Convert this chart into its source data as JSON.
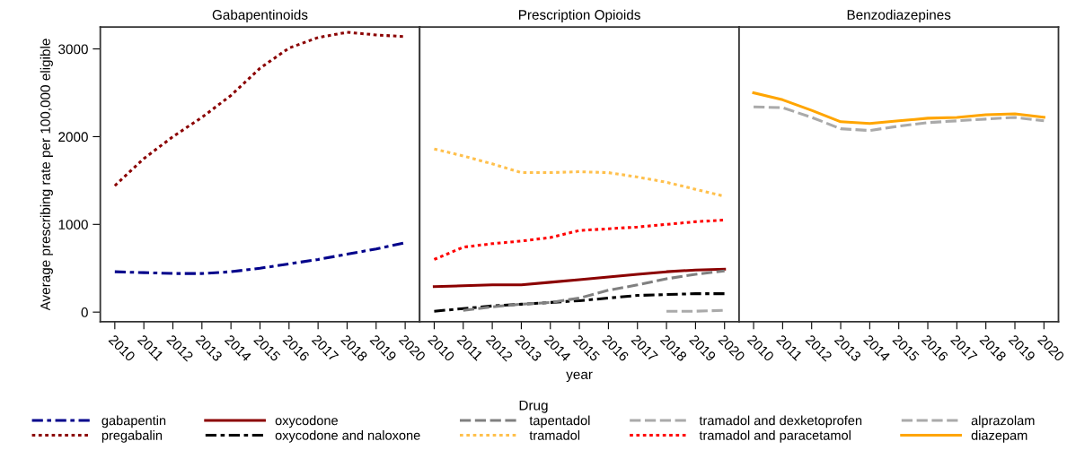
{
  "chart_data": [
    {
      "type": "line",
      "title": "Gabapentinoids",
      "ylabel": "Average prescribing rate per 100,000 eligible",
      "legend_title": "Drug",
      "legend": "bottom",
      "marker": "none",
      "grid": false,
      "x": [
        2010,
        2011,
        2012,
        2013,
        2014,
        2015,
        2016,
        2017,
        2018,
        2019,
        2020
      ],
      "xlim": [
        2009.5,
        2020.5
      ],
      "xticks": [
        2010,
        2011,
        2012,
        2013,
        2014,
        2015,
        2016,
        2017,
        2018,
        2019,
        2020
      ],
      "ylim": [
        -110,
        3250
      ],
      "yticks": [
        0,
        1000,
        2000,
        3000
      ],
      "series": [
        {
          "name": "gabapentin",
          "color": "#00008b",
          "line_style": "dashdot",
          "values": [
            460,
            450,
            440,
            440,
            460,
            500,
            550,
            600,
            660,
            720,
            790
          ]
        },
        {
          "name": "pregabalin",
          "color": "#8b0000",
          "line_style": "dotted",
          "values": [
            1440,
            1750,
            2000,
            2220,
            2470,
            2780,
            3010,
            3130,
            3190,
            3160,
            3140
          ]
        }
      ]
    },
    {
      "type": "line",
      "title": "Prescription Opioids",
      "xlabel": "year",
      "legend": "bottom",
      "marker": "none",
      "grid": false,
      "tick_labels": "x",
      "x": [
        2010,
        2011,
        2012,
        2013,
        2014,
        2015,
        2016,
        2017,
        2018,
        2019,
        2020
      ],
      "xlim": [
        2009.5,
        2020.5
      ],
      "xticks": [
        2010,
        2011,
        2012,
        2013,
        2014,
        2015,
        2016,
        2017,
        2018,
        2019,
        2020
      ],
      "ylim": [
        -110,
        3250
      ],
      "series": [
        {
          "name": "oxycodone",
          "color": "#8b0000",
          "line_style": "solid",
          "values": [
            290,
            300,
            310,
            310,
            340,
            370,
            400,
            430,
            460,
            480,
            490
          ]
        },
        {
          "name": "oxycodone and naloxone",
          "color": "#000000",
          "line_style": "dashdot",
          "values": [
            10,
            40,
            70,
            90,
            110,
            130,
            160,
            190,
            200,
            210,
            210
          ]
        },
        {
          "name": "tapentadol",
          "color": "#808080",
          "line_style": "dashed",
          "values": [
            null,
            20,
            60,
            90,
            110,
            160,
            250,
            310,
            380,
            430,
            470
          ]
        },
        {
          "name": "tramadol",
          "color": "#ffc04c",
          "line_style": "dotted",
          "values": [
            1860,
            1780,
            1690,
            1590,
            1590,
            1600,
            1590,
            1540,
            1480,
            1400,
            1320
          ]
        },
        {
          "name": "tramadol and dexketoprofen",
          "color": "#aaaaaa",
          "line_style": "dashed",
          "values": [
            null,
            null,
            null,
            null,
            null,
            null,
            null,
            null,
            10,
            10,
            20
          ]
        },
        {
          "name": "tramadol and paracetamol",
          "color": "#ff0000",
          "line_style": "dotted",
          "values": [
            600,
            740,
            780,
            810,
            850,
            930,
            950,
            970,
            1000,
            1030,
            1050
          ]
        }
      ]
    },
    {
      "type": "line",
      "title": "Benzodiazepines",
      "legend": "bottom",
      "marker": "none",
      "grid": false,
      "tick_labels": "x",
      "x": [
        2010,
        2011,
        2012,
        2013,
        2014,
        2015,
        2016,
        2017,
        2018,
        2019,
        2020
      ],
      "xlim": [
        2009.5,
        2020.5
      ],
      "xticks": [
        2010,
        2011,
        2012,
        2013,
        2014,
        2015,
        2016,
        2017,
        2018,
        2019,
        2020
      ],
      "ylim": [
        -110,
        3250
      ],
      "series": [
        {
          "name": "alprazolam",
          "color": "#aaaaaa",
          "line_style": "dashed",
          "values": [
            2340,
            2330,
            2220,
            2090,
            2070,
            2120,
            2160,
            2180,
            2200,
            2220,
            2180
          ]
        },
        {
          "name": "diazepam",
          "color": "#ffa500",
          "line_style": "solid",
          "values": [
            2500,
            2420,
            2300,
            2170,
            2150,
            2180,
            2210,
            2220,
            2250,
            2260,
            2220
          ]
        }
      ]
    }
  ]
}
